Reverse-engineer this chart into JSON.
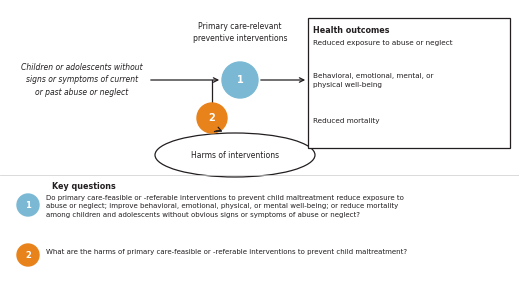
{
  "bg_color": "#ffffff",
  "arrow_color": "#231f20",
  "circle1_color": "#7ab8d4",
  "circle2_color": "#e8821a",
  "circle_text_color": "#ffffff",
  "box_line_color": "#231f20",
  "harms_ellipse_color": "#ffffff",
  "harms_ellipse_line": "#231f20",
  "population_text": "Children or adolescents without\nsigns or symptoms of current\nor past abuse or neglect",
  "intervention_label": "Primary care-relevant\npreventive interventions",
  "outcomes_title": "Health outcomes",
  "outcome1": "Reduced exposure to abuse or neglect",
  "outcome2": "Behavioral, emotional, mental, or\nphysical well-being",
  "outcome3": "Reduced mortality",
  "harms_text": "Harms of interventions",
  "kq_header": "Key questions",
  "kq1_text": "Do primary care-feasible or -referable interventions to prevent child maltreatment reduce exposure to\nabuse or neglect; improve behavioral, emotional, physical, or mental well-being; or reduce mortality\namong children and adolescents without obvious signs or symptoms of abuse or neglect?",
  "kq2_text": "What are the harms of primary care-feasible or -referable interventions to prevent child maltreatment?"
}
